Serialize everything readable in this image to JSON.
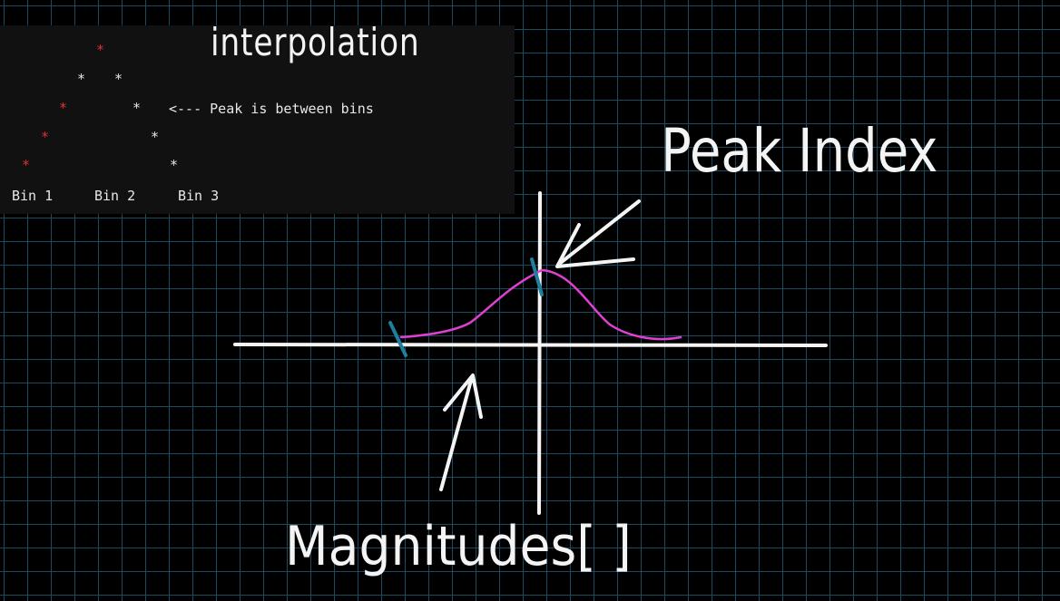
{
  "panel": {
    "star": "*",
    "pointer_text": "<--- Peak is between bins",
    "bins": [
      "Bin 1",
      "Bin 2",
      "Bin 3"
    ]
  },
  "annotations": {
    "title": "interpolation",
    "peak_label": "Peak Index",
    "magnitudes_label": "Magnitudes[ ]"
  },
  "colors": {
    "grid": "#1d4a63",
    "background": "#000000",
    "panel_bg": "#111111",
    "red_star": "#e0302e",
    "curve": "#e040d0",
    "tick": "#1f7fa0",
    "ink": "#f4f4f4"
  },
  "icons": {
    "peak_arrow": "arrow-icon",
    "magnitudes_arrow": "arrow-icon"
  }
}
